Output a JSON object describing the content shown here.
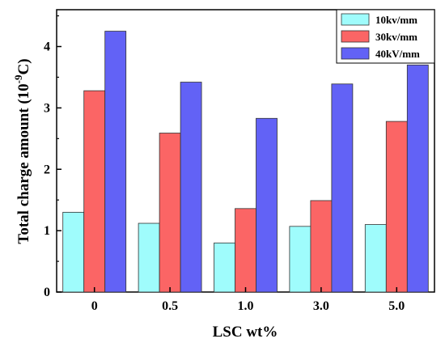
{
  "chart_data": {
    "type": "bar",
    "categories": [
      "0",
      "0.5",
      "1.0",
      "3.0",
      "5.0"
    ],
    "series": [
      {
        "name": "10kv/mm",
        "color": "#9ffcfc",
        "values": [
          1.3,
          1.12,
          0.8,
          1.07,
          1.1
        ]
      },
      {
        "name": "30kv/mm",
        "color": "#fb6565",
        "values": [
          3.28,
          2.59,
          1.36,
          1.49,
          2.78
        ]
      },
      {
        "name": "40kV/mm",
        "color": "#6262f6",
        "values": [
          4.25,
          3.42,
          2.83,
          3.39,
          3.7
        ]
      }
    ],
    "xlabel": "LSC wt%",
    "ylabel_main": "Total charge amount (10",
    "ylabel_exp": "-9",
    "ylabel_unit": "C)",
    "ylim": [
      0,
      4.6
    ],
    "yticks": [
      "0",
      "1",
      "2",
      "3",
      "4"
    ],
    "legend_position": "top-right",
    "grid": false
  }
}
